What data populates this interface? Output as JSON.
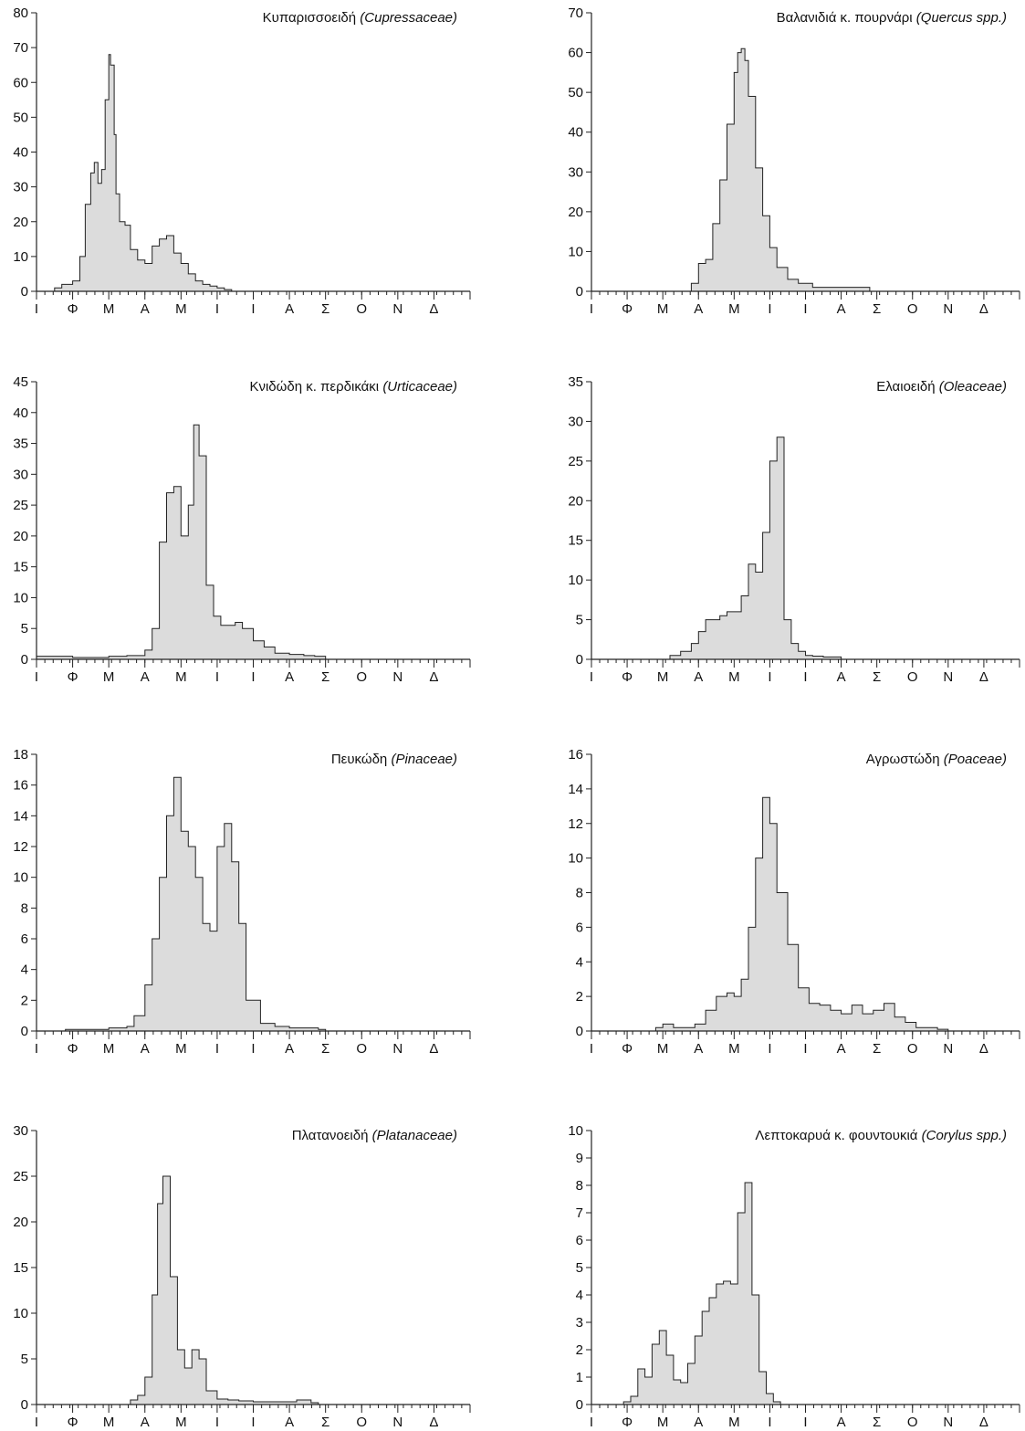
{
  "colors": {
    "fill": "#dcdcdc",
    "line": "#222222",
    "background": "#ffffff"
  },
  "chart_data": [
    {
      "type": "area",
      "title": "Κυπαρισσοειδή",
      "title_italic": "(Cupressaceae)",
      "ylim": [
        0,
        80
      ],
      "yticks": [
        "0",
        "10",
        "20",
        "30",
        "40",
        "50",
        "60",
        "70",
        "80"
      ],
      "month_labels": [
        "Ι",
        "Φ",
        "Μ",
        "Α",
        "Μ",
        "Ι",
        "Ι",
        "Α",
        "Σ",
        "Ο",
        "Ν",
        "Δ"
      ],
      "x": [
        0.3,
        0.5,
        0.7,
        1.0,
        1.2,
        1.35,
        1.5,
        1.6,
        1.7,
        1.8,
        1.9,
        2.0,
        2.05,
        2.15,
        2.2,
        2.3,
        2.45,
        2.6,
        2.8,
        3.0,
        3.2,
        3.4,
        3.6,
        3.8,
        4.0,
        4.2,
        4.4,
        4.6,
        4.8,
        5.0,
        5.2,
        5.4,
        5.6,
        5.8,
        6.0,
        6.2
      ],
      "y": [
        0,
        1,
        2,
        3,
        10,
        25,
        34,
        37,
        31,
        35,
        55,
        68,
        65,
        45,
        28,
        20,
        19,
        12,
        9,
        8,
        13,
        15,
        16,
        11,
        8,
        5,
        3,
        2,
        1.5,
        1,
        0.5,
        0,
        0,
        0,
        0,
        0
      ]
    },
    {
      "type": "area",
      "title": "Βαλανιδιά κ. πουρνάρι",
      "title_italic": "(Quercus spp.)",
      "ylim": [
        0,
        70
      ],
      "yticks": [
        "0",
        "10",
        "20",
        "30",
        "40",
        "50",
        "60",
        "70"
      ],
      "month_labels": [
        "Ι",
        "Φ",
        "Μ",
        "Α",
        "Μ",
        "Ι",
        "Ι",
        "Α",
        "Σ",
        "Ο",
        "Ν",
        "Δ"
      ],
      "x": [
        2.6,
        2.8,
        3.0,
        3.2,
        3.4,
        3.6,
        3.8,
        4.0,
        4.1,
        4.2,
        4.3,
        4.4,
        4.6,
        4.8,
        5.0,
        5.2,
        5.5,
        5.8,
        6.2,
        6.6,
        7.0,
        7.4,
        7.8
      ],
      "y": [
        0,
        2,
        7,
        8,
        17,
        28,
        42,
        55,
        60,
        61,
        58,
        49,
        31,
        19,
        11,
        6,
        3,
        2,
        1,
        1,
        1,
        1,
        0
      ]
    },
    {
      "type": "area",
      "title": "Κνιδώδη κ. περδικάκι",
      "title_italic": "(Urticaceae)",
      "ylim": [
        0,
        45
      ],
      "yticks": [
        "0",
        "5",
        "10",
        "15",
        "20",
        "25",
        "30",
        "35",
        "40",
        "45"
      ],
      "month_labels": [
        "Ι",
        "Φ",
        "Μ",
        "Α",
        "Μ",
        "Ι",
        "Ι",
        "Α",
        "Σ",
        "Ο",
        "Ν",
        "Δ"
      ],
      "x": [
        0.0,
        0.5,
        1.0,
        1.5,
        2.0,
        2.5,
        3.0,
        3.2,
        3.4,
        3.6,
        3.8,
        4.0,
        4.2,
        4.35,
        4.5,
        4.7,
        4.9,
        5.1,
        5.3,
        5.5,
        5.7,
        6.0,
        6.3,
        6.6,
        7.0,
        7.4,
        7.7,
        8.0
      ],
      "y": [
        0.5,
        0.5,
        0.3,
        0.3,
        0.5,
        0.6,
        1.5,
        5,
        19,
        27,
        28,
        20,
        25,
        38,
        33,
        12,
        7,
        5.5,
        5.5,
        6,
        5,
        3,
        2,
        1,
        0.8,
        0.6,
        0.5,
        0
      ]
    },
    {
      "type": "area",
      "title": "Ελαιοειδή",
      "title_italic": "(Oleaceae)",
      "ylim": [
        0,
        35
      ],
      "yticks": [
        "0",
        "5",
        "10",
        "15",
        "20",
        "25",
        "30",
        "35"
      ],
      "month_labels": [
        "Ι",
        "Φ",
        "Μ",
        "Α",
        "Μ",
        "Ι",
        "Ι",
        "Α",
        "Σ",
        "Ο",
        "Ν",
        "Δ"
      ],
      "x": [
        2.0,
        2.2,
        2.5,
        2.8,
        3.0,
        3.2,
        3.4,
        3.6,
        3.8,
        4.0,
        4.2,
        4.4,
        4.6,
        4.8,
        5.0,
        5.2,
        5.4,
        5.6,
        5.8,
        6.0,
        6.2,
        6.5,
        7.0
      ],
      "y": [
        0,
        0.5,
        1,
        2,
        3.5,
        5,
        5,
        5.5,
        6,
        6,
        8,
        12,
        11,
        16,
        25,
        28,
        5,
        2,
        1,
        0.5,
        0.4,
        0.3,
        0
      ]
    },
    {
      "type": "area",
      "title": "Πευκώδη",
      "title_italic": "(Pinaceae)",
      "ylim": [
        0,
        18
      ],
      "yticks": [
        "0",
        "2",
        "4",
        "6",
        "8",
        "10",
        "12",
        "14",
        "16",
        "18"
      ],
      "month_labels": [
        "Ι",
        "Φ",
        "Μ",
        "Α",
        "Μ",
        "Ι",
        "Ι",
        "Α",
        "Σ",
        "Ο",
        "Ν",
        "Δ"
      ],
      "x": [
        0.5,
        0.8,
        1.2,
        1.6,
        2.0,
        2.5,
        2.7,
        3.0,
        3.2,
        3.4,
        3.6,
        3.8,
        4.0,
        4.2,
        4.4,
        4.6,
        4.8,
        5.0,
        5.2,
        5.4,
        5.6,
        5.8,
        6.2,
        6.6,
        7.0,
        7.4,
        7.8,
        8.0
      ],
      "y": [
        0,
        0.1,
        0.1,
        0.1,
        0.2,
        0.3,
        1,
        3,
        6,
        10,
        14,
        16.5,
        13,
        12,
        10,
        7,
        6.5,
        12,
        13.5,
        11,
        7,
        2,
        0.5,
        0.3,
        0.2,
        0.2,
        0.1,
        0
      ]
    },
    {
      "type": "area",
      "title": "Αγρωστώδη",
      "title_italic": "(Poaceae)",
      "ylim": [
        0,
        16
      ],
      "yticks": [
        "0",
        "2",
        "4",
        "6",
        "8",
        "10",
        "12",
        "14",
        "16"
      ],
      "month_labels": [
        "Ι",
        "Φ",
        "Μ",
        "Α",
        "Μ",
        "Ι",
        "Ι",
        "Α",
        "Σ",
        "Ο",
        "Ν",
        "Δ"
      ],
      "x": [
        1.5,
        1.8,
        2.0,
        2.3,
        2.6,
        2.9,
        3.2,
        3.5,
        3.8,
        4.0,
        4.2,
        4.4,
        4.6,
        4.8,
        5.0,
        5.2,
        5.5,
        5.8,
        6.1,
        6.4,
        6.7,
        7.0,
        7.3,
        7.6,
        7.9,
        8.2,
        8.5,
        8.8,
        9.1,
        9.4,
        9.7,
        10.0
      ],
      "y": [
        0,
        0.2,
        0.4,
        0.2,
        0.2,
        0.4,
        1.2,
        2,
        2.2,
        2,
        3,
        6,
        10,
        13.5,
        12,
        8,
        5,
        2.5,
        1.6,
        1.5,
        1.2,
        1,
        1.5,
        1,
        1.2,
        1.6,
        0.8,
        0.5,
        0.2,
        0.2,
        0.1,
        0
      ]
    },
    {
      "type": "area",
      "title": "Πλατανοειδή",
      "title_italic": "(Platanaceae)",
      "ylim": [
        0,
        30
      ],
      "yticks": [
        "0",
        "5",
        "10",
        "15",
        "20",
        "25",
        "30"
      ],
      "month_labels": [
        "Ι",
        "Φ",
        "Μ",
        "Α",
        "Μ",
        "Ι",
        "Ι",
        "Α",
        "Σ",
        "Ο",
        "Ν",
        "Δ"
      ],
      "x": [
        2.4,
        2.6,
        2.8,
        3.0,
        3.2,
        3.35,
        3.5,
        3.7,
        3.9,
        4.1,
        4.3,
        4.5,
        4.7,
        5.0,
        5.3,
        5.6,
        6.0,
        6.4,
        6.8,
        7.2,
        7.6,
        7.8
      ],
      "y": [
        0,
        0.5,
        1,
        3,
        12,
        22,
        25,
        14,
        6,
        4,
        6,
        5,
        1.5,
        0.6,
        0.5,
        0.4,
        0.3,
        0.3,
        0.3,
        0.5,
        0.2,
        0
      ]
    },
    {
      "type": "area",
      "title": "Λεπτοκαρυά κ. φουντουκιά",
      "title_italic": "(Corylus spp.)",
      "ylim": [
        0,
        10
      ],
      "yticks": [
        "0",
        "1",
        "2",
        "3",
        "4",
        "5",
        "6",
        "7",
        "8",
        "9",
        "10"
      ],
      "month_labels": [
        "Ι",
        "Φ",
        "Μ",
        "Α",
        "Μ",
        "Ι",
        "Ι",
        "Α",
        "Σ",
        "Ο",
        "Ν",
        "Δ"
      ],
      "x": [
        0.7,
        0.9,
        1.1,
        1.3,
        1.5,
        1.7,
        1.9,
        2.1,
        2.3,
        2.5,
        2.7,
        2.9,
        3.1,
        3.3,
        3.5,
        3.7,
        3.9,
        4.1,
        4.3,
        4.5,
        4.7,
        4.9,
        5.1,
        5.3
      ],
      "y": [
        0,
        0.1,
        0.3,
        1.3,
        1.0,
        2.2,
        2.7,
        1.8,
        0.9,
        0.8,
        1.5,
        2.5,
        3.4,
        3.9,
        4.4,
        4.5,
        4.4,
        7.0,
        8.1,
        4.0,
        1.2,
        0.4,
        0.1,
        0
      ]
    }
  ]
}
